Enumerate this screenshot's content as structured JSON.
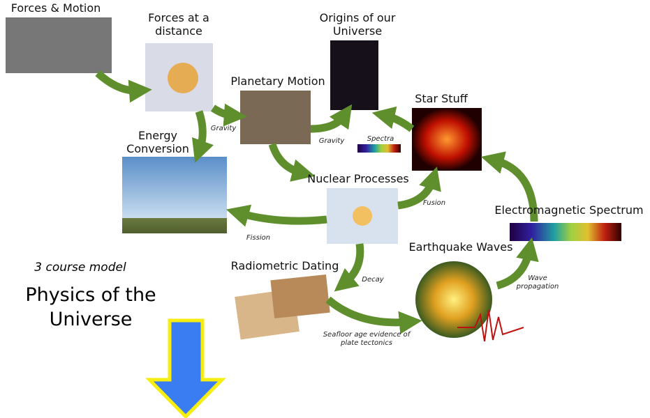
{
  "nodes": [
    {
      "label": [
        "Forces & Motion"
      ]
    },
    {
      "label": [
        "Forces at a",
        "distance"
      ]
    },
    {
      "label": [
        "Origins of our",
        "Universe"
      ]
    },
    {
      "label": [
        "Planetary Motion"
      ]
    },
    {
      "label": [
        "Star Stuff"
      ]
    },
    {
      "label": [
        "Energy",
        "Conversion"
      ]
    },
    {
      "label": [
        "Nuclear Processes"
      ]
    },
    {
      "label": [
        "Electromagnetic Spectrum"
      ]
    },
    {
      "label": [
        "Earthquake Waves"
      ]
    },
    {
      "label": [
        "Radiometric Dating"
      ]
    }
  ],
  "edge_labels": [
    [
      "Gravity"
    ],
    [
      "Gravity"
    ],
    [
      "Spectra"
    ],
    [
      "Fusion"
    ],
    [
      "Fission"
    ],
    [
      "Decay"
    ],
    [
      "Wave",
      "propagation"
    ],
    [
      "Seafloor age evidence of",
      "plate tectonics"
    ]
  ],
  "model": {
    "subtitle": "3 course model",
    "title": [
      "Physics of the",
      "Universe"
    ]
  }
}
